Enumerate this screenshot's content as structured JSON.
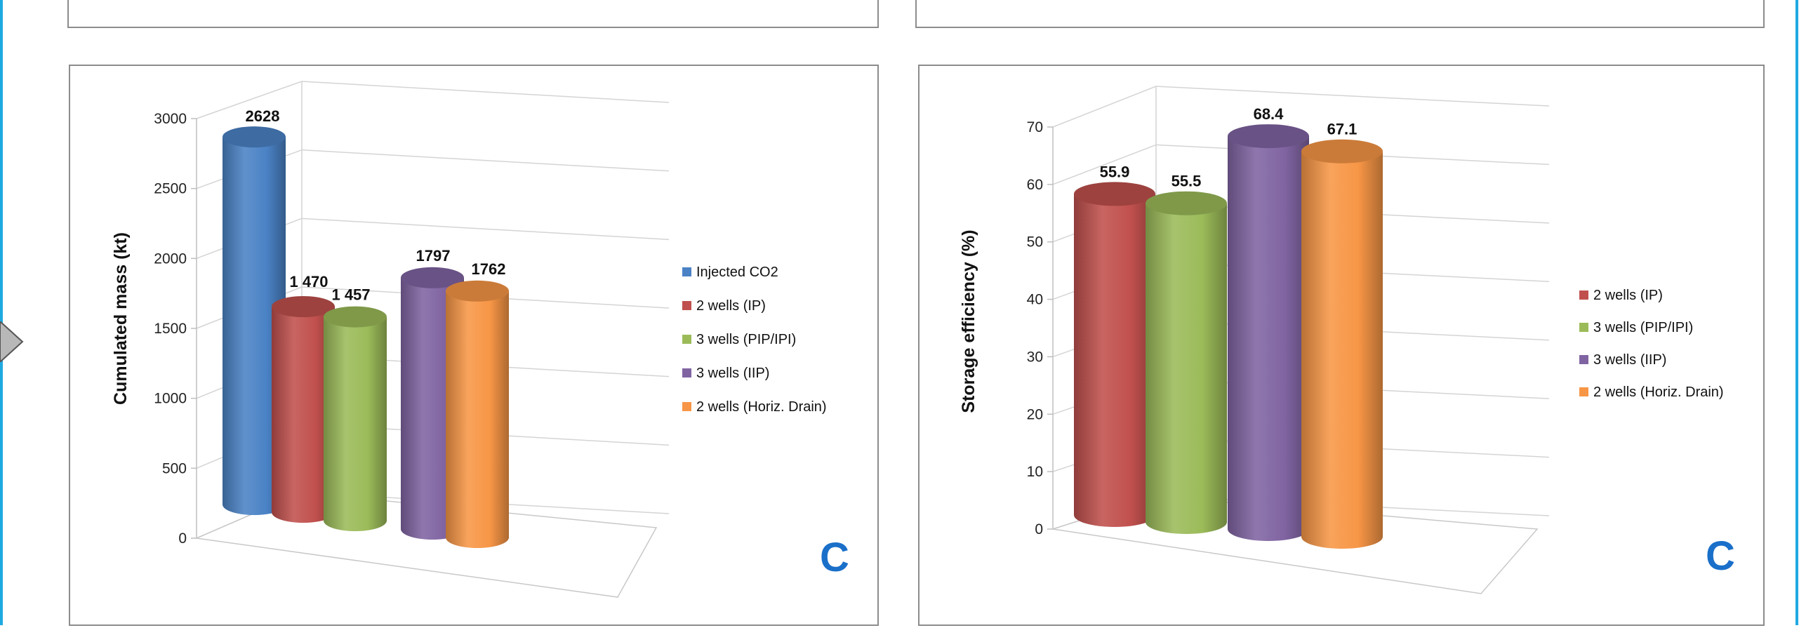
{
  "chart_data": [
    {
      "type": "bar",
      "style": "3d-cylinder",
      "ylabel": "Cumulated mass (kt)",
      "ylim": [
        0,
        3000
      ],
      "yticks": [
        "0",
        "500",
        "1000",
        "1500",
        "2000",
        "2500",
        "3000"
      ],
      "legend_position": "right",
      "corner_letter": "C",
      "series": [
        {
          "name": "Injected CO2",
          "value": 2628,
          "label": "2628",
          "color": "#4a82c5"
        },
        {
          "name": "2 wells (IP)",
          "value": 1470,
          "label": "1 470",
          "color": "#c0504d"
        },
        {
          "name": "3 wells (PIP/IPI)",
          "value": 1457,
          "label": "1 457",
          "color": "#9bbb59"
        },
        {
          "name": "3 wells (IIP)",
          "value": 1797,
          "label": "1797",
          "color": "#8064a2"
        },
        {
          "name": "2 wells (Horiz. Drain)",
          "value": 1762,
          "label": "1762",
          "color": "#f79646"
        }
      ]
    },
    {
      "type": "bar",
      "style": "3d-cylinder",
      "ylabel": "Storage efficiency (%)",
      "ylim": [
        0,
        70
      ],
      "yticks": [
        "0",
        "10",
        "20",
        "30",
        "40",
        "50",
        "60",
        "70"
      ],
      "legend_position": "right",
      "corner_letter": "C",
      "series": [
        {
          "name": "2 wells (IP)",
          "value": 55.9,
          "label": "55.9",
          "color": "#c0504d"
        },
        {
          "name": "3 wells (PIP/IPI)",
          "value": 55.5,
          "label": "55.5",
          "color": "#9bbb59"
        },
        {
          "name": "3 wells (IIP)",
          "value": 68.4,
          "label": "68.4",
          "color": "#8064a2"
        },
        {
          "name": "2 wells (Horiz. Drain)",
          "value": 67.1,
          "label": "67.1",
          "color": "#f79646"
        }
      ]
    }
  ]
}
